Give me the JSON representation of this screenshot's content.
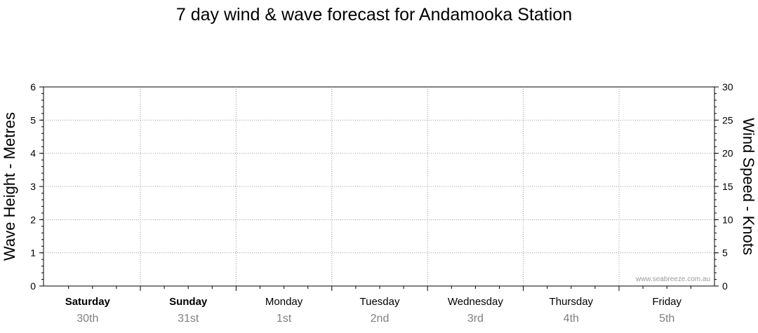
{
  "chart_data": {
    "type": "line",
    "title": "7 day wind & wave forecast for Andamooka Station",
    "y_left": {
      "label": "Wave Height - Metres",
      "range": [
        0,
        6
      ],
      "ticks": [
        0,
        1,
        2,
        3,
        4,
        5,
        6
      ]
    },
    "y_right": {
      "label": "Wind Speed - Knots",
      "range": [
        0,
        30
      ],
      "ticks": [
        0,
        5,
        10,
        15,
        20,
        25,
        30
      ]
    },
    "days": [
      {
        "day": "Saturday",
        "date": "30th",
        "bold": true
      },
      {
        "day": "Sunday",
        "date": "31st",
        "bold": true
      },
      {
        "day": "Monday",
        "date": "1st",
        "bold": false
      },
      {
        "day": "Tuesday",
        "date": "2nd",
        "bold": false
      },
      {
        "day": "Wednesday",
        "date": "3rd",
        "bold": false
      },
      {
        "day": "Thursday",
        "date": "4th",
        "bold": false
      },
      {
        "day": "Friday",
        "date": "5th",
        "bold": false
      }
    ],
    "series": [],
    "grid": true,
    "watermark": "www.seabreeze.com.au"
  }
}
